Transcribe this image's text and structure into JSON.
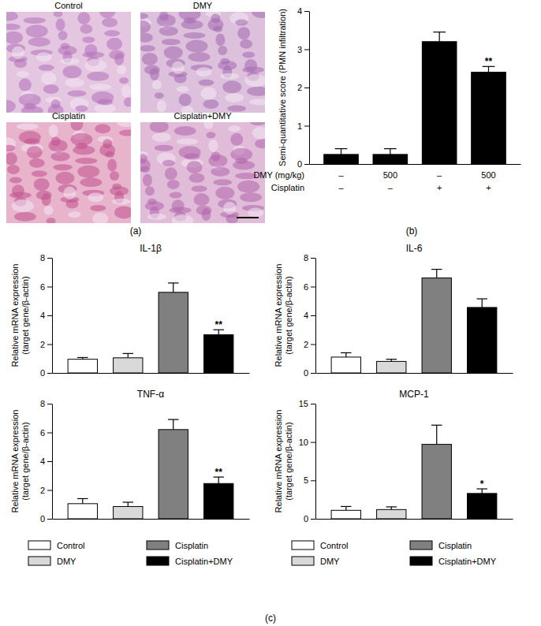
{
  "figure": {
    "panels": [
      "(a)",
      "(b)",
      "(c)"
    ],
    "micrographs": [
      "Control",
      "DMY",
      "Cisplatin",
      "Cisplatin+DMY"
    ]
  },
  "chart_data": [
    {
      "type": "bar",
      "y_label": "Semi-quantitative score (PMN infiltration)",
      "categories": [
        null,
        null,
        null,
        null
      ],
      "values": [
        0.25,
        0.25,
        3.2,
        2.4
      ],
      "errors": [
        0.15,
        0.15,
        0.25,
        0.15
      ],
      "colors": [
        "#000000",
        "#000000",
        "#000000",
        "#000000"
      ],
      "ylim": [
        0,
        4
      ],
      "yticks": [
        0,
        1,
        2,
        3,
        4
      ],
      "tick_labels": "y",
      "x_table": [
        {
          "label": "DMY (mg/kg)",
          "values": [
            "–",
            "500",
            "–",
            "500"
          ]
        },
        {
          "label": "Cisplatin",
          "values": [
            "–",
            "–",
            "+",
            "+"
          ]
        }
      ],
      "annotations": [
        {
          "index": 3,
          "text": "**"
        }
      ]
    },
    {
      "type": "bar",
      "title": "IL-1β",
      "y_label": [
        "Relative mRNA expression",
        "(target gene/β-actin)"
      ],
      "categories": [
        "Control",
        "DMY",
        "Cisplatin",
        "Cisplatin+DMY"
      ],
      "values": [
        0.95,
        1.05,
        5.6,
        2.65
      ],
      "errors": [
        0.12,
        0.3,
        0.65,
        0.35
      ],
      "colors": [
        "#ffffff",
        "#d9d9d9",
        "#808080",
        "#000000"
      ],
      "ylim": [
        0,
        8
      ],
      "yticks": [
        0,
        2,
        4,
        6,
        8
      ],
      "tick_labels": "y",
      "annotations": [
        {
          "index": 3,
          "text": "**"
        }
      ]
    },
    {
      "type": "bar",
      "title": "IL-6",
      "y_label": [
        "Relative mRNA expression",
        "(target gene/β-actin)"
      ],
      "categories": [
        "Control",
        "DMY",
        "Cisplatin",
        "Cisplatin+DMY"
      ],
      "values": [
        1.1,
        0.8,
        6.6,
        4.55
      ],
      "errors": [
        0.3,
        0.15,
        0.6,
        0.6
      ],
      "colors": [
        "#ffffff",
        "#d9d9d9",
        "#808080",
        "#000000"
      ],
      "ylim": [
        0,
        8
      ],
      "yticks": [
        0,
        2,
        4,
        6,
        8
      ],
      "tick_labels": "y"
    },
    {
      "type": "bar",
      "title": "TNF-α",
      "y_label": [
        "Relative mRNA expression",
        "(target gene/β-actin)"
      ],
      "categories": [
        "Control",
        "DMY",
        "Cisplatin",
        "Cisplatin+DMY"
      ],
      "values": [
        1.05,
        0.85,
        6.2,
        2.45
      ],
      "errors": [
        0.35,
        0.3,
        0.7,
        0.45
      ],
      "colors": [
        "#ffffff",
        "#d9d9d9",
        "#808080",
        "#000000"
      ],
      "ylim": [
        0,
        8
      ],
      "yticks": [
        0,
        2,
        4,
        6,
        8
      ],
      "tick_labels": "y",
      "legend": "bottom",
      "annotations": [
        {
          "index": 3,
          "text": "**"
        }
      ]
    },
    {
      "type": "bar",
      "title": "MCP-1",
      "y_label": [
        "Relative mRNA expression",
        "(target gene/β-actin)"
      ],
      "categories": [
        "Control",
        "DMY",
        "Cisplatin",
        "Cisplatin+DMY"
      ],
      "values": [
        1.1,
        1.2,
        9.7,
        3.3
      ],
      "errors": [
        0.5,
        0.35,
        2.5,
        0.6
      ],
      "colors": [
        "#ffffff",
        "#d9d9d9",
        "#808080",
        "#000000"
      ],
      "ylim": [
        0,
        15
      ],
      "yticks": [
        0,
        5,
        10,
        15
      ],
      "tick_labels": "y",
      "legend": "bottom",
      "annotations": [
        {
          "index": 3,
          "text": "*"
        }
      ]
    }
  ]
}
